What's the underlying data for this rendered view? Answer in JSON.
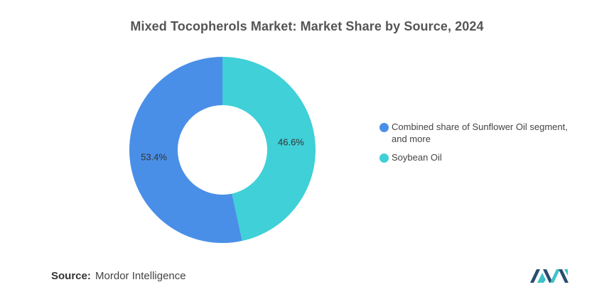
{
  "title": "Mixed Tocopherols Market: Market Share by Source, 2024",
  "chart_data": {
    "type": "pie",
    "variant": "donut",
    "title": "Mixed Tocopherols Market: Market Share by Source, 2024",
    "categories": [
      "Combined share of Sunflower Oil segment, and more",
      "Soybean Oil"
    ],
    "values": [
      53.4,
      46.6
    ],
    "labels": [
      "53.4%",
      "46.6%"
    ],
    "colors": [
      "#4a8fe7",
      "#3fd0d8"
    ],
    "start": "top, clockwise",
    "legend_position": "right"
  },
  "legend": [
    {
      "label": "Combined share of Sunflower Oil segment, and more",
      "color": "#4a8fe7"
    },
    {
      "label": "Soybean Oil",
      "color": "#3fd0d8"
    }
  ],
  "source": {
    "label": "Source:",
    "value": "Mordor Intelligence"
  },
  "logo": {
    "icon": "mordor-intelligence-logo-icon",
    "colors": [
      "#2a4d6e",
      "#3fc1c9"
    ]
  }
}
